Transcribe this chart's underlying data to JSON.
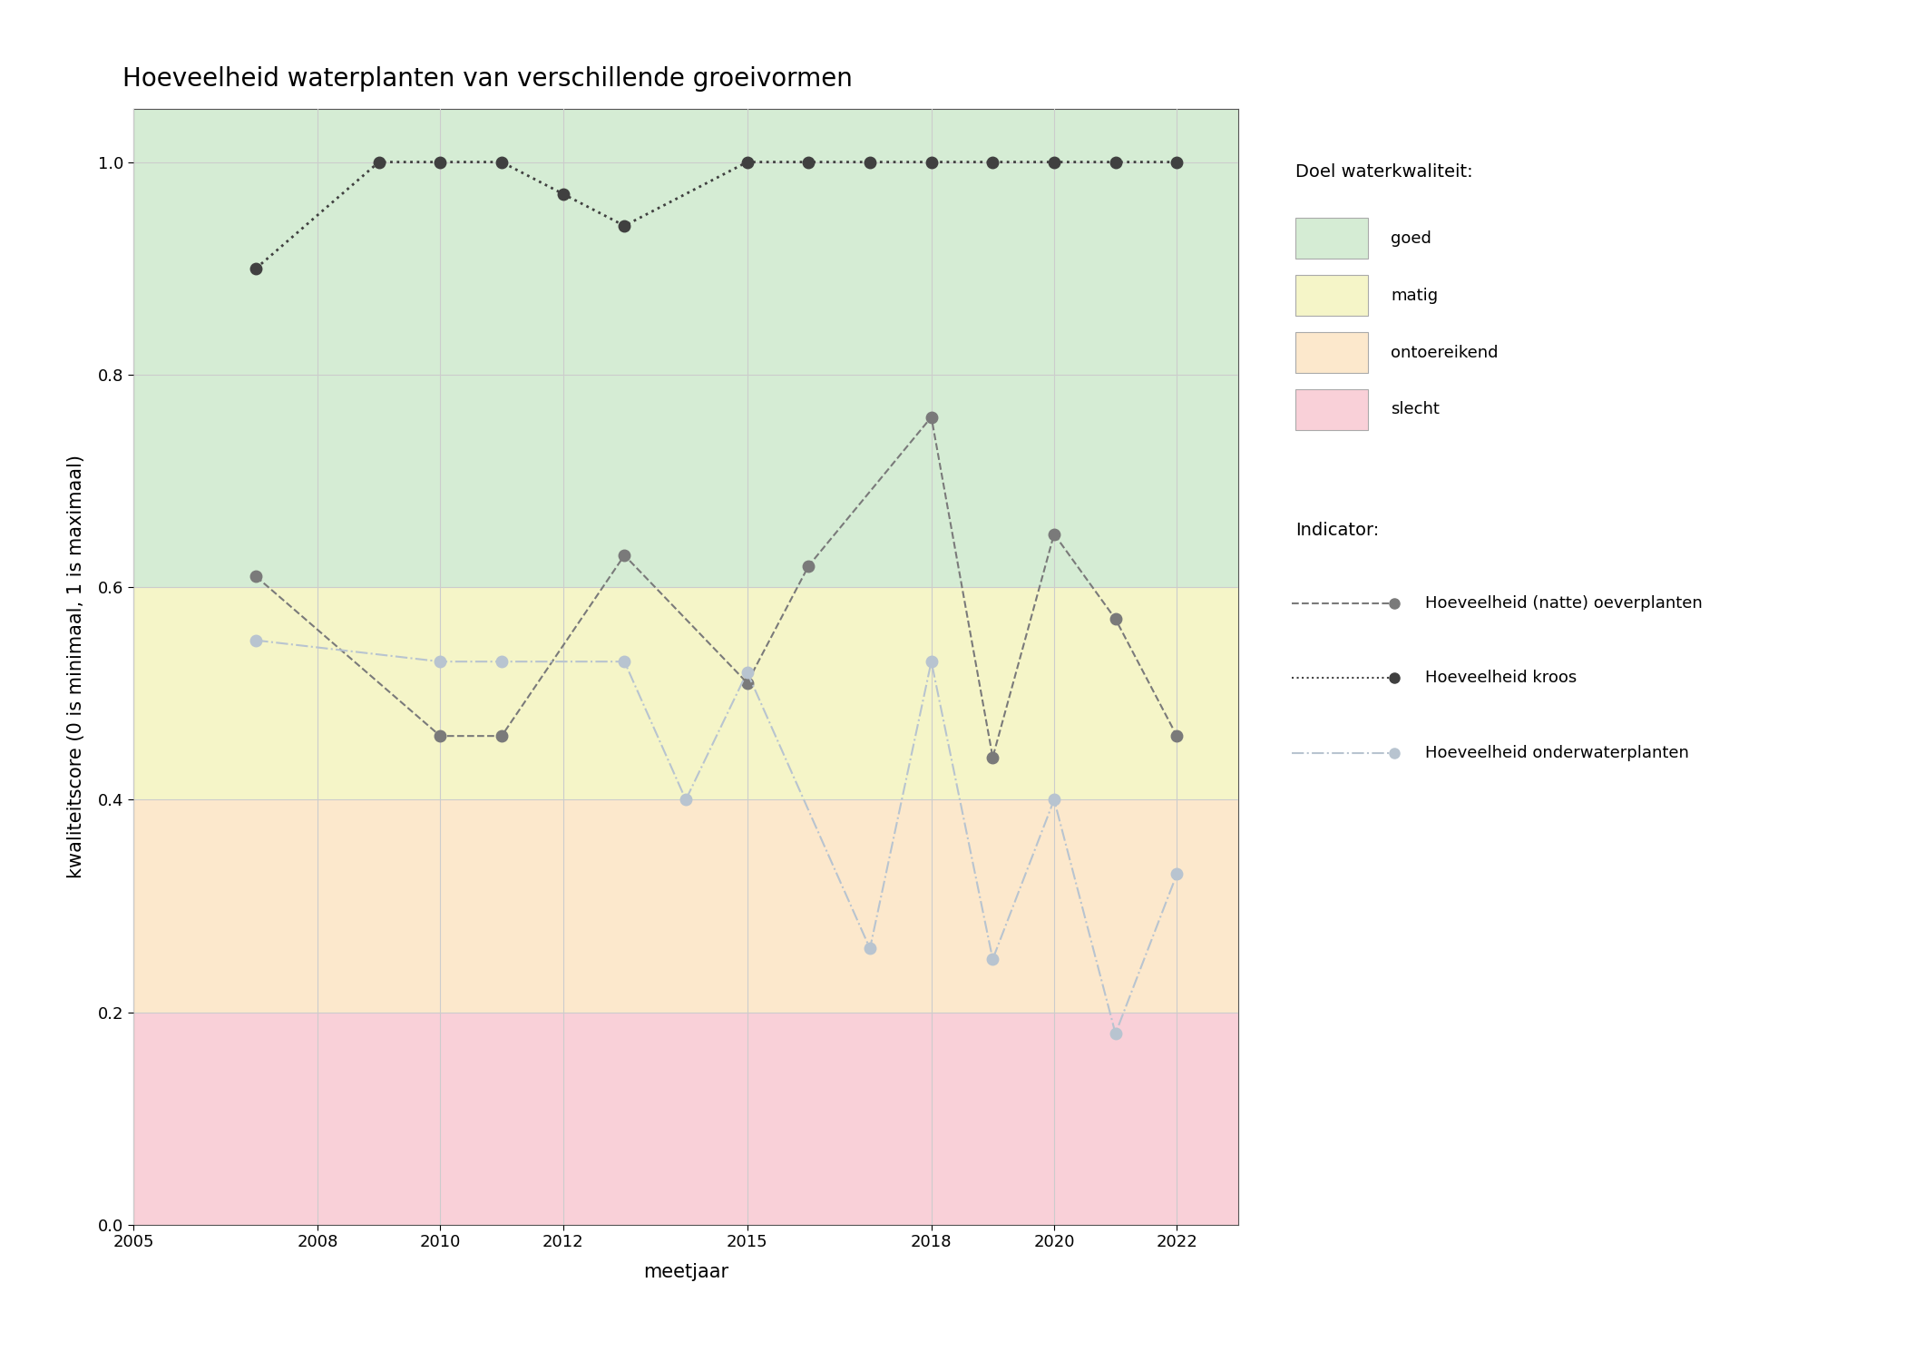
{
  "title": "Hoeveelheid waterplanten van verschillende groeivormen",
  "xlabel": "meetjaar",
  "ylabel": "kwaliteitscore (0 is minimaal, 1 is maximaal)",
  "xlim": [
    2005,
    2023
  ],
  "ylim": [
    0.0,
    1.05
  ],
  "yticks": [
    0.0,
    0.2,
    0.4,
    0.6,
    0.8,
    1.0
  ],
  "xticks": [
    2005,
    2008,
    2010,
    2012,
    2015,
    2018,
    2020,
    2022
  ],
  "bg_colors": {
    "goed": "#d5ecd4",
    "matig": "#f5f5c8",
    "ontoereikend": "#fce8cc",
    "slecht": "#f9d0d8"
  },
  "bg_ranges": {
    "goed": [
      0.6,
      1.05
    ],
    "matig": [
      0.4,
      0.6
    ],
    "ontoereikend": [
      0.2,
      0.4
    ],
    "slecht": [
      0.0,
      0.2
    ]
  },
  "series_oeverplanten": {
    "years": [
      2007,
      2010,
      2011,
      2013,
      2015,
      2016,
      2018,
      2019,
      2020,
      2021,
      2022
    ],
    "values": [
      0.61,
      0.46,
      0.46,
      0.63,
      0.51,
      0.62,
      0.76,
      0.44,
      0.65,
      0.57,
      0.46
    ],
    "color": "#7a7a7a",
    "linestyle": "--",
    "marker": "o",
    "markersize": 9,
    "linewidth": 1.5,
    "label": "Hoeveelheid (natte) oeverplanten"
  },
  "series_kroos": {
    "years": [
      2007,
      2009,
      2010,
      2011,
      2012,
      2013,
      2015,
      2016,
      2017,
      2018,
      2019,
      2020,
      2021,
      2022
    ],
    "values": [
      0.9,
      1.0,
      1.0,
      1.0,
      0.97,
      0.94,
      1.0,
      1.0,
      1.0,
      1.0,
      1.0,
      1.0,
      1.0,
      1.0
    ],
    "color": "#404040",
    "linestyle": ":",
    "marker": "o",
    "markersize": 9,
    "linewidth": 2.0,
    "label": "Hoeveelheid kroos"
  },
  "series_onderwaterplanten": {
    "years": [
      2007,
      2010,
      2011,
      2013,
      2014,
      2015,
      2017,
      2018,
      2019,
      2020,
      2021,
      2022
    ],
    "values": [
      0.55,
      0.53,
      0.53,
      0.53,
      0.4,
      0.52,
      0.26,
      0.53,
      0.25,
      0.4,
      0.18,
      0.33
    ],
    "color": "#b8c4d0",
    "linestyle": "-.",
    "marker": "o",
    "markersize": 9,
    "linewidth": 1.5,
    "label": "Hoeveelheid onderwaterplanten"
  },
  "legend_kwaliteit_labels": [
    "goed",
    "matig",
    "ontoereikend",
    "slecht"
  ],
  "legend_kwaliteit_colors": [
    "#d5ecd4",
    "#f5f5c8",
    "#fce8cc",
    "#f9d0d8"
  ],
  "figsize": [
    21.0,
    15.0
  ],
  "dpi": 100,
  "background_color": "#ffffff",
  "grid_color": "#cccccc",
  "title_fontsize": 20,
  "label_fontsize": 15,
  "tick_fontsize": 13,
  "legend_fontsize": 13
}
